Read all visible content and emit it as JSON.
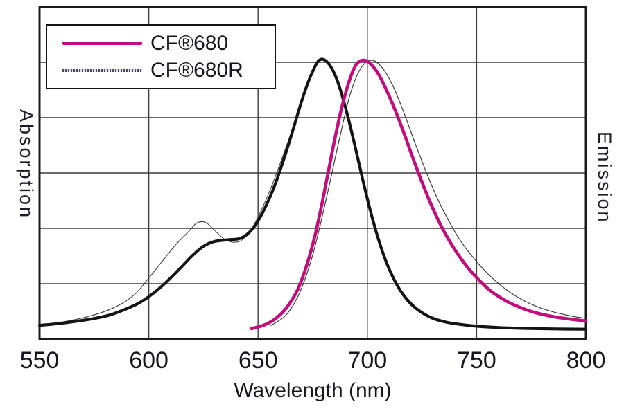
{
  "figure": {
    "background": "#ffffff"
  },
  "chart_data": {
    "type": "line",
    "title": "",
    "xlabel": "Wavelength (nm)",
    "ylabel_left": "Absorption",
    "ylabel_right": "Emission",
    "x_ticks": [
      "550",
      "600",
      "650",
      "700",
      "750",
      "800"
    ],
    "xlim": [
      550,
      800
    ],
    "ylim": [
      0,
      1.18
    ],
    "grid": true,
    "grid_color": "#3c3c3c",
    "axis_color": "#1a1a1a",
    "text_color": "#16161e",
    "legend": {
      "position": "top-left",
      "entries": [
        {
          "label": "CF®680",
          "color": "#c30d7d",
          "line": "thick"
        },
        {
          "label": "CF®680R",
          "color": "#3a3a3a",
          "line": "thin"
        }
      ]
    },
    "series": [
      {
        "name": "CF®680R Absorption",
        "color": "#3a3a3a",
        "width": 1.1,
        "points": [
          [
            550,
            0.022
          ],
          [
            560,
            0.032
          ],
          [
            570,
            0.048
          ],
          [
            580,
            0.072
          ],
          [
            588,
            0.102
          ],
          [
            594,
            0.138
          ],
          [
            600,
            0.195
          ],
          [
            606,
            0.255
          ],
          [
            612,
            0.315
          ],
          [
            618,
            0.365
          ],
          [
            622,
            0.398
          ],
          [
            626,
            0.4
          ],
          [
            630,
            0.372
          ],
          [
            634,
            0.342
          ],
          [
            638,
            0.328
          ],
          [
            642,
            0.332
          ],
          [
            646,
            0.365
          ],
          [
            650,
            0.42
          ],
          [
            656,
            0.53
          ],
          [
            662,
            0.66
          ],
          [
            668,
            0.8
          ],
          [
            673,
            0.92
          ],
          [
            678,
            1.0
          ],
          [
            683,
            0.975
          ],
          [
            688,
            0.88
          ],
          [
            693,
            0.73
          ],
          [
            698,
            0.56
          ],
          [
            703,
            0.4
          ],
          [
            708,
            0.27
          ],
          [
            713,
            0.175
          ],
          [
            718,
            0.11
          ],
          [
            724,
            0.068
          ],
          [
            730,
            0.045
          ],
          [
            740,
            0.026
          ],
          [
            750,
            0.016
          ],
          [
            765,
            0.01
          ],
          [
            780,
            0.007
          ],
          [
            800,
            0.005
          ]
        ]
      },
      {
        "name": "CF®680R Emission",
        "color": "#3a3a3a",
        "width": 1.2,
        "points": [
          [
            656,
            0.02
          ],
          [
            663,
            0.06
          ],
          [
            669,
            0.14
          ],
          [
            675,
            0.28
          ],
          [
            681,
            0.48
          ],
          [
            687,
            0.7
          ],
          [
            692,
            0.87
          ],
          [
            697,
            0.97
          ],
          [
            702,
            1.0
          ],
          [
            707,
            0.97
          ],
          [
            712,
            0.9
          ],
          [
            717,
            0.8
          ],
          [
            722,
            0.69
          ],
          [
            727,
            0.585
          ],
          [
            732,
            0.49
          ],
          [
            737,
            0.41
          ],
          [
            742,
            0.34
          ],
          [
            748,
            0.275
          ],
          [
            754,
            0.22
          ],
          [
            760,
            0.175
          ],
          [
            766,
            0.138
          ],
          [
            772,
            0.11
          ],
          [
            778,
            0.088
          ],
          [
            784,
            0.072
          ],
          [
            790,
            0.06
          ],
          [
            795,
            0.052
          ],
          [
            800,
            0.046
          ]
        ]
      },
      {
        "name": "CF®680 Absorption",
        "color": "#141414",
        "width": 4.2,
        "points": [
          [
            550,
            0.02
          ],
          [
            558,
            0.026
          ],
          [
            566,
            0.034
          ],
          [
            574,
            0.044
          ],
          [
            582,
            0.058
          ],
          [
            590,
            0.082
          ],
          [
            596,
            0.105
          ],
          [
            602,
            0.138
          ],
          [
            608,
            0.18
          ],
          [
            614,
            0.228
          ],
          [
            620,
            0.278
          ],
          [
            625,
            0.312
          ],
          [
            630,
            0.33
          ],
          [
            636,
            0.336
          ],
          [
            642,
            0.342
          ],
          [
            647,
            0.372
          ],
          [
            652,
            0.435
          ],
          [
            658,
            0.545
          ],
          [
            664,
            0.69
          ],
          [
            670,
            0.85
          ],
          [
            674,
            0.94
          ],
          [
            678,
            1.0
          ],
          [
            682,
            0.99
          ],
          [
            686,
            0.93
          ],
          [
            690,
            0.825
          ],
          [
            694,
            0.695
          ],
          [
            698,
            0.555
          ],
          [
            702,
            0.425
          ],
          [
            706,
            0.315
          ],
          [
            710,
            0.228
          ],
          [
            715,
            0.15
          ],
          [
            720,
            0.1
          ],
          [
            725,
            0.067
          ],
          [
            730,
            0.046
          ],
          [
            736,
            0.032
          ],
          [
            742,
            0.024
          ],
          [
            750,
            0.017
          ],
          [
            760,
            0.012
          ],
          [
            772,
            0.009
          ],
          [
            786,
            0.007
          ],
          [
            800,
            0.006
          ]
        ]
      },
      {
        "name": "CF®680 Emission",
        "color": "#c30d7d",
        "width": 4.6,
        "points": [
          [
            647,
            0.008
          ],
          [
            653,
            0.022
          ],
          [
            658,
            0.045
          ],
          [
            663,
            0.085
          ],
          [
            668,
            0.15
          ],
          [
            672,
            0.235
          ],
          [
            676,
            0.35
          ],
          [
            680,
            0.5
          ],
          [
            684,
            0.665
          ],
          [
            688,
            0.815
          ],
          [
            692,
            0.93
          ],
          [
            695,
            0.985
          ],
          [
            698,
            1.0
          ],
          [
            701,
            0.99
          ],
          [
            705,
            0.95
          ],
          [
            709,
            0.885
          ],
          [
            713,
            0.81
          ],
          [
            717,
            0.725
          ],
          [
            721,
            0.635
          ],
          [
            725,
            0.55
          ],
          [
            729,
            0.47
          ],
          [
            733,
            0.4
          ],
          [
            737,
            0.34
          ],
          [
            741,
            0.288
          ],
          [
            746,
            0.233
          ],
          [
            751,
            0.188
          ],
          [
            756,
            0.15
          ],
          [
            761,
            0.122
          ],
          [
            766,
            0.1
          ],
          [
            771,
            0.083
          ],
          [
            776,
            0.069
          ],
          [
            781,
            0.059
          ],
          [
            786,
            0.051
          ],
          [
            791,
            0.045
          ],
          [
            796,
            0.04
          ],
          [
            800,
            0.036
          ]
        ]
      }
    ]
  }
}
